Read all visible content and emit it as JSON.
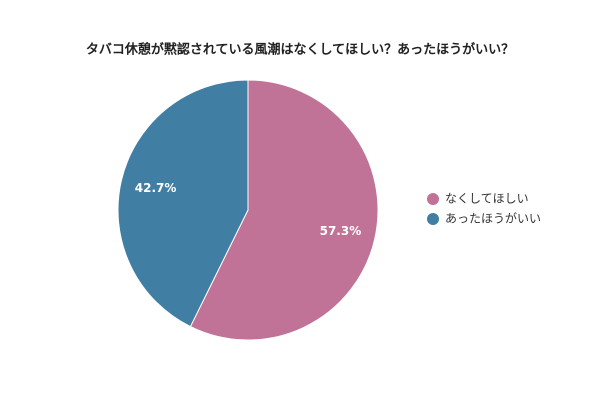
{
  "chart_data": {
    "type": "pie",
    "title": "タバコ休憩が黙認されている風潮はなくしてほしい？あったほうがいい？",
    "categories": [
      "なくしてほしい",
      "あったほうがいい"
    ],
    "values": [
      57.3,
      42.7
    ],
    "value_labels": [
      "57.3%",
      "42.7%"
    ],
    "colors": [
      "#c07396",
      "#417ea3"
    ],
    "legend": "right"
  }
}
